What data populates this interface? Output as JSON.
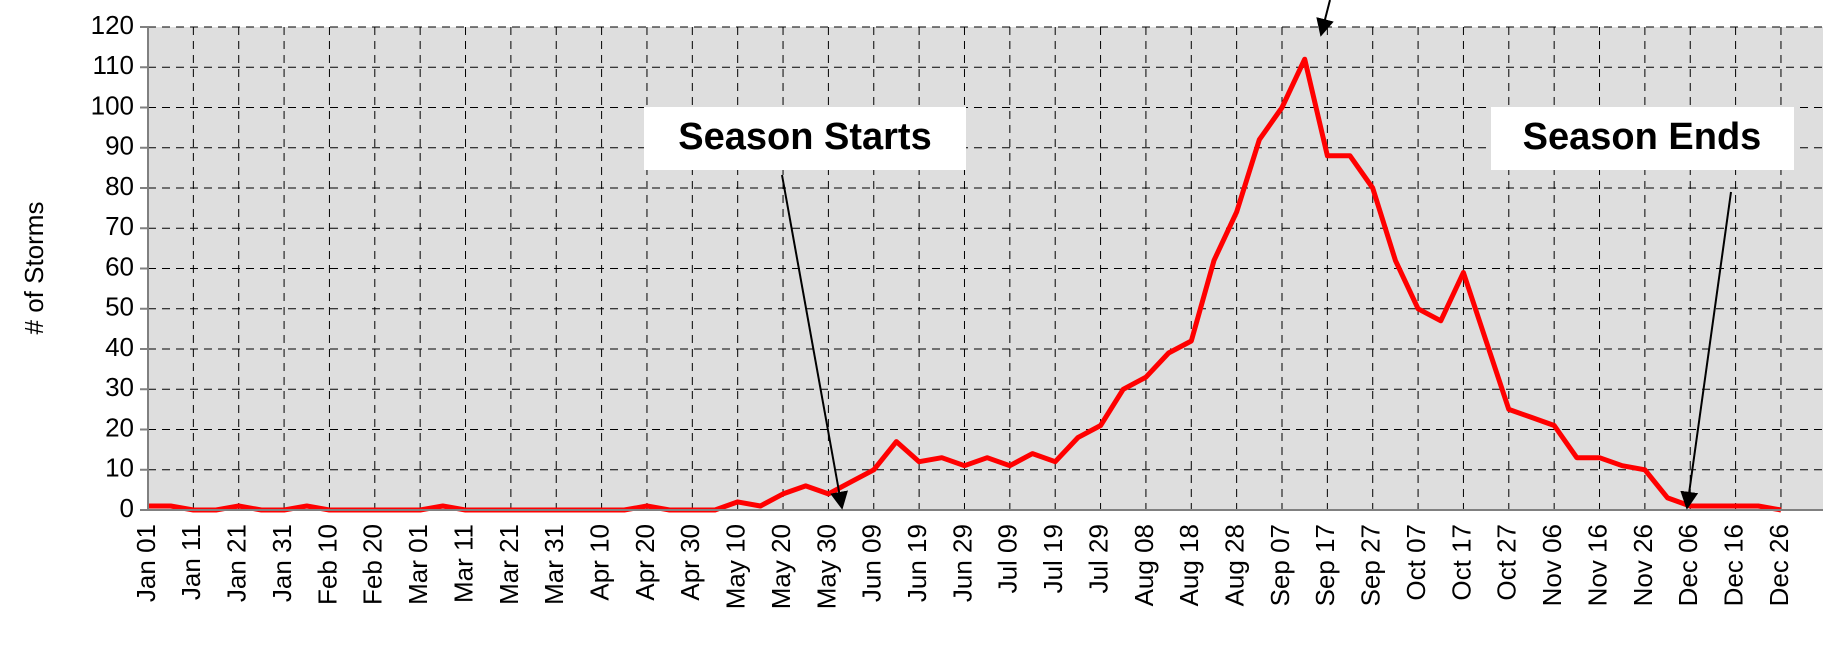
{
  "chart_data": {
    "type": "line",
    "ylabel": "# of Storms",
    "categories": [
      "Jan 01",
      null,
      "Jan 11",
      null,
      "Jan 21",
      null,
      "Jan 31",
      null,
      "Feb 10",
      null,
      "Feb 20",
      null,
      "Mar 01",
      null,
      "Mar 11",
      null,
      "Mar 21",
      null,
      "Mar 31",
      null,
      "Apr 10",
      null,
      "Apr 20",
      null,
      "Apr 30",
      null,
      "May 10",
      null,
      "May 20",
      null,
      "May 30",
      null,
      "Jun 09",
      null,
      "Jun 19",
      null,
      "Jun 29",
      null,
      "Jul 09",
      null,
      "Jul 19",
      null,
      "Jul 29",
      null,
      "Aug 08",
      null,
      "Aug 18",
      null,
      "Aug 28",
      null,
      "Sep 07",
      null,
      "Sep 17",
      null,
      "Sep 27",
      null,
      "Oct 07",
      null,
      "Oct 17",
      null,
      "Oct 27",
      null,
      "Nov 06",
      null,
      "Nov 16",
      null,
      "Nov 26",
      null,
      "Dec 06",
      null,
      "Dec 16",
      null,
      "Dec 26"
    ],
    "values": [
      1,
      1,
      0,
      0,
      1,
      0,
      0,
      1,
      0,
      0,
      0,
      0,
      0,
      1,
      0,
      0,
      0,
      0,
      0,
      0,
      0,
      0,
      1,
      0,
      0,
      0,
      2,
      1,
      4,
      6,
      4,
      7,
      10,
      17,
      12,
      13,
      11,
      13,
      11,
      14,
      12,
      18,
      21,
      30,
      33,
      39,
      42,
      62,
      74,
      92,
      100,
      112,
      88,
      88,
      80,
      62,
      50,
      47,
      59,
      42,
      25,
      23,
      21,
      13,
      13,
      11,
      10,
      3,
      1,
      1,
      1,
      1,
      0
    ],
    "color": "#ff0000",
    "ylim": [
      0,
      120
    ],
    "yticks": [
      0,
      10,
      20,
      30,
      40,
      50,
      60,
      70,
      80,
      90,
      100,
      110,
      120
    ],
    "grid": true,
    "annotations": [
      {
        "text": "Season Starts"
      },
      {
        "text": "Season Ends"
      }
    ]
  }
}
